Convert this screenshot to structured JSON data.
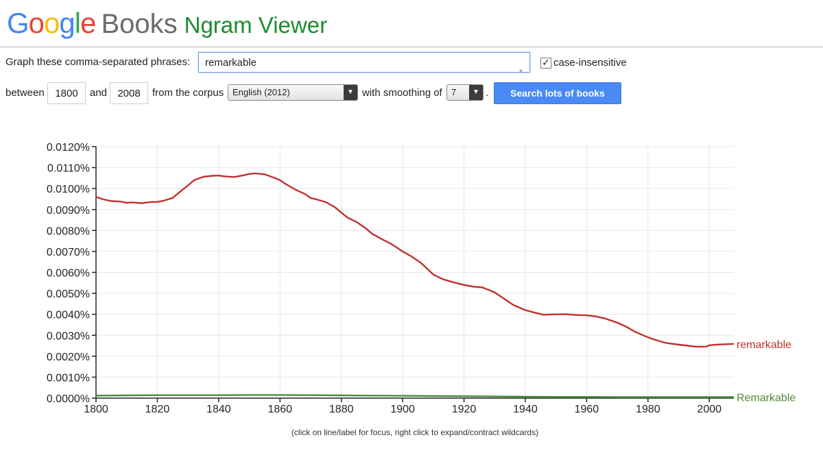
{
  "header": {
    "logo_google": "Google",
    "logo_books": "Books",
    "logo_ngram": "Ngram Viewer"
  },
  "colors": {
    "google_blue": "#4285f4",
    "google_red": "#ea4335",
    "google_yellow": "#fbbc05",
    "google_green": "#34a853",
    "ngram_green": "#1a8d2c",
    "series_remarkable": "#c1302c",
    "series_Remarkable": "#4e8a3a",
    "button_blue": "#4a8af4"
  },
  "form": {
    "phrases_label": "Graph these comma-separated phrases:",
    "phrases_value": "remarkable",
    "case_insensitive_checked": true,
    "case_insensitive_label": "case-insensitive",
    "between_label": "between",
    "start_year": "1800",
    "and_label": "and",
    "end_year": "2008",
    "corpus_label": "from the corpus",
    "corpus_value": "English (2012)",
    "smoothing_label": "with smoothing of",
    "smoothing_value": "7",
    "period": ".",
    "search_button": "Search lots of books"
  },
  "chart_data": {
    "type": "line",
    "xlim": [
      1800,
      2008
    ],
    "ylim": [
      0,
      0.012
    ],
    "y_ticks": [
      "0.0120%",
      "0.0110%",
      "0.0100%",
      "0.0090%",
      "0.0080%",
      "0.0070%",
      "0.0060%",
      "0.0050%",
      "0.0040%",
      "0.0030%",
      "0.0020%",
      "0.0010%",
      "0.0000%"
    ],
    "y_tick_values": [
      0.012,
      0.011,
      0.01,
      0.009,
      0.008,
      0.007,
      0.006,
      0.005,
      0.004,
      0.003,
      0.002,
      0.001,
      0.0
    ],
    "x_ticks": [
      "1800",
      "1820",
      "1840",
      "1860",
      "1880",
      "1900",
      "1920",
      "1940",
      "1960",
      "1980",
      "2000"
    ],
    "x_tick_values": [
      1800,
      1820,
      1840,
      1860,
      1880,
      1900,
      1920,
      1940,
      1960,
      1980,
      2000
    ],
    "grid": true,
    "note": "(click on line/label for focus, right click to expand/contract wildcards)",
    "series": [
      {
        "name": "remarkable",
        "color": "#c1302c",
        "x": [
          1800,
          1802,
          1805,
          1808,
          1810,
          1812,
          1815,
          1818,
          1820,
          1822,
          1825,
          1827,
          1830,
          1832,
          1835,
          1838,
          1840,
          1842,
          1845,
          1848,
          1850,
          1852,
          1855,
          1858,
          1860,
          1862,
          1865,
          1868,
          1870,
          1872,
          1875,
          1878,
          1880,
          1882,
          1885,
          1888,
          1890,
          1893,
          1896,
          1900,
          1903,
          1906,
          1910,
          1913,
          1916,
          1920,
          1923,
          1926,
          1930,
          1933,
          1936,
          1940,
          1943,
          1946,
          1950,
          1953,
          1956,
          1960,
          1963,
          1966,
          1970,
          1973,
          1976,
          1980,
          1983,
          1986,
          1990,
          1993,
          1996,
          1999,
          2000,
          2002,
          2005,
          2008
        ],
        "values": [
          0.0096,
          0.0095,
          0.0094,
          0.00938,
          0.00932,
          0.00934,
          0.0093,
          0.00936,
          0.00936,
          0.00942,
          0.00955,
          0.0098,
          0.01015,
          0.0104,
          0.01056,
          0.01061,
          0.01062,
          0.01058,
          0.01055,
          0.01063,
          0.0107,
          0.01072,
          0.01068,
          0.01052,
          0.0104,
          0.0102,
          0.00995,
          0.00975,
          0.00955,
          0.00948,
          0.00935,
          0.0091,
          0.00885,
          0.00862,
          0.0084,
          0.0081,
          0.00785,
          0.0076,
          0.00738,
          0.007,
          0.00675,
          0.00645,
          0.0059,
          0.00568,
          0.00555,
          0.0054,
          0.00532,
          0.00528,
          0.00505,
          0.00475,
          0.00445,
          0.0042,
          0.00408,
          0.00398,
          0.004,
          0.00401,
          0.00397,
          0.00395,
          0.0039,
          0.0038,
          0.0036,
          0.0034,
          0.00315,
          0.0029,
          0.00275,
          0.00263,
          0.00255,
          0.0025,
          0.00245,
          0.00246,
          0.00252,
          0.00255,
          0.00257,
          0.00259
        ]
      },
      {
        "name": "Remarkable",
        "color": "#4e8a3a",
        "x": [
          1800,
          1810,
          1820,
          1830,
          1840,
          1850,
          1860,
          1870,
          1880,
          1890,
          1900,
          1910,
          1920,
          1930,
          1940,
          1950,
          1960,
          1970,
          1980,
          1990,
          2000,
          2008
        ],
        "values": [
          0.00012,
          0.00013,
          0.00014,
          0.00014,
          0.00014,
          0.00015,
          0.00015,
          0.00014,
          0.00013,
          0.00012,
          0.00011,
          0.0001,
          9e-05,
          8e-05,
          7e-05,
          6e-05,
          6e-05,
          5e-05,
          5e-05,
          5e-05,
          5e-05,
          5e-05
        ]
      }
    ]
  }
}
